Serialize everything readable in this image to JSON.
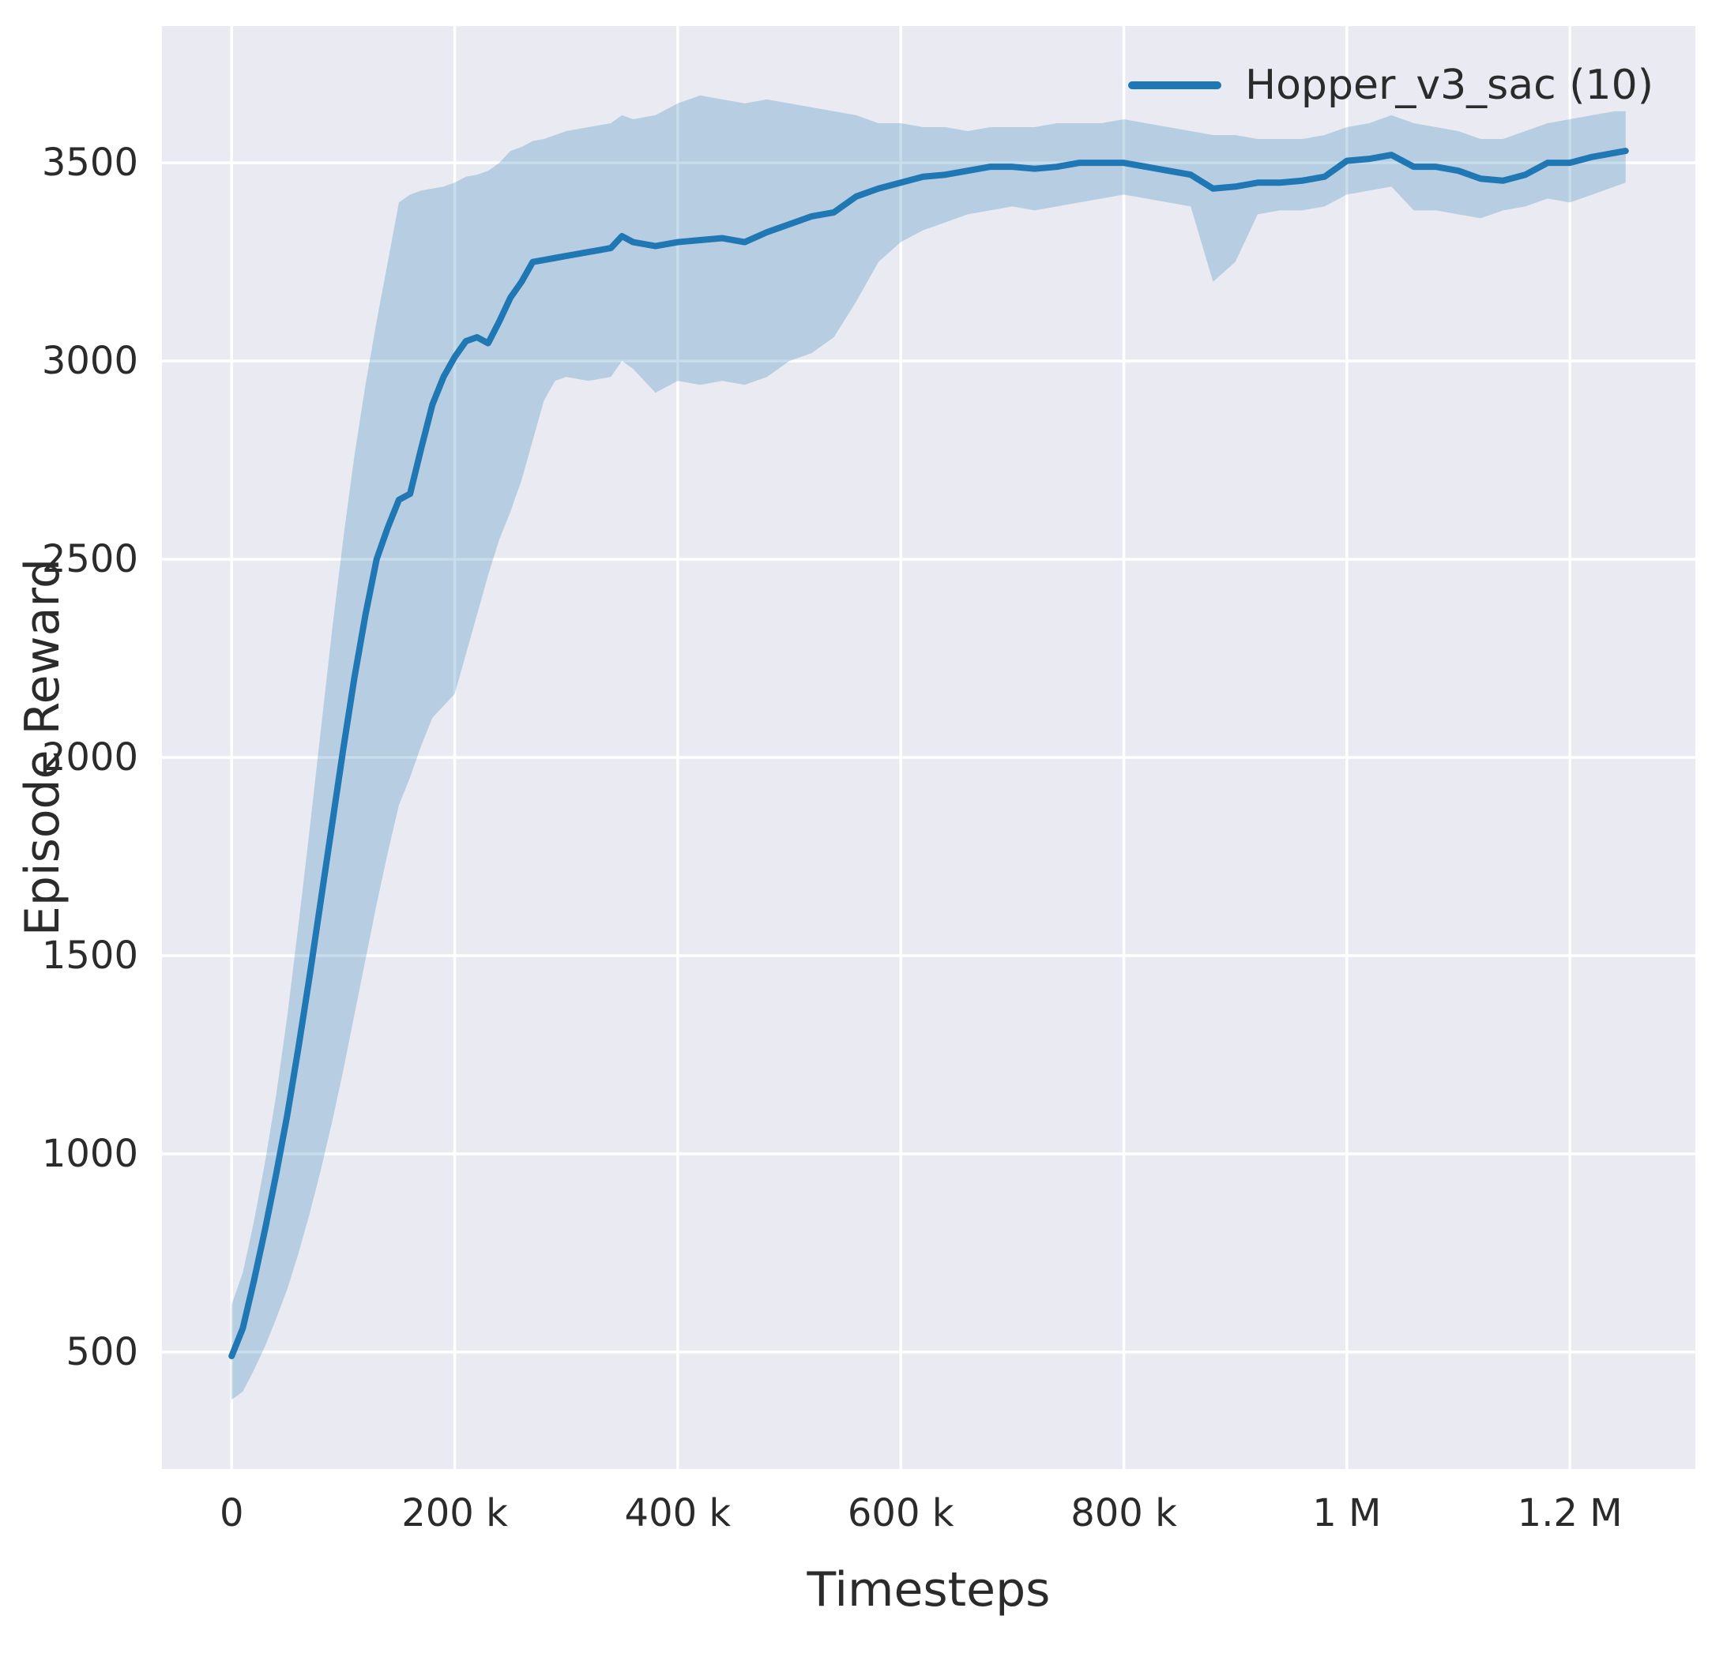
{
  "chart_data": {
    "type": "line",
    "title": "",
    "xlabel": "Timesteps",
    "ylabel": "Episode Reward",
    "legend_label": "Hopper_v3_sac (10)",
    "legend_position": "upper right",
    "grid": true,
    "plot_background": "#eaeaf2",
    "gridline_color": "#ffffff",
    "tick_color": "#2b2b2b",
    "xlim": [
      -62500,
      1312500
    ],
    "ylim": [
      205,
      3845
    ],
    "xticks": {
      "values": [
        0,
        200000,
        400000,
        600000,
        800000,
        1000000,
        1200000
      ],
      "labels": [
        "0",
        "200 k",
        "400 k",
        "600 k",
        "800 k",
        "1 M",
        "1.2 M"
      ]
    },
    "yticks": {
      "values": [
        500,
        1000,
        1500,
        2000,
        2500,
        3000,
        3500
      ],
      "labels": [
        "500",
        "1000",
        "1500",
        "2000",
        "2500",
        "3000",
        "3500"
      ]
    },
    "series": [
      {
        "name": "Hopper_v3_sac (10)",
        "color": "#1f77b4",
        "band_opacity": 0.25,
        "line_width": 8,
        "x": [
          0,
          10000,
          20000,
          30000,
          40000,
          50000,
          60000,
          70000,
          80000,
          90000,
          100000,
          110000,
          120000,
          130000,
          140000,
          150000,
          160000,
          170000,
          180000,
          190000,
          200000,
          210000,
          220000,
          230000,
          240000,
          250000,
          260000,
          270000,
          280000,
          290000,
          300000,
          320000,
          340000,
          350000,
          360000,
          380000,
          400000,
          420000,
          440000,
          460000,
          480000,
          500000,
          520000,
          540000,
          560000,
          580000,
          600000,
          620000,
          640000,
          660000,
          680000,
          700000,
          720000,
          740000,
          760000,
          780000,
          800000,
          820000,
          840000,
          860000,
          880000,
          900000,
          920000,
          940000,
          960000,
          980000,
          1000000,
          1020000,
          1040000,
          1060000,
          1080000,
          1100000,
          1120000,
          1140000,
          1160000,
          1180000,
          1200000,
          1220000,
          1240000,
          1250000
        ],
        "mean": [
          490,
          560,
          680,
          810,
          950,
          1100,
          1270,
          1450,
          1640,
          1830,
          2020,
          2200,
          2360,
          2500,
          2580,
          2650,
          2665,
          2780,
          2890,
          2960,
          3010,
          3050,
          3060,
          3045,
          3100,
          3160,
          3200,
          3250,
          3255,
          3260,
          3265,
          3275,
          3285,
          3315,
          3300,
          3290,
          3300,
          3305,
          3310,
          3300,
          3325,
          3345,
          3365,
          3375,
          3415,
          3435,
          3450,
          3465,
          3470,
          3480,
          3490,
          3490,
          3485,
          3490,
          3500,
          3500,
          3500,
          3490,
          3480,
          3470,
          3435,
          3440,
          3450,
          3450,
          3455,
          3465,
          3505,
          3510,
          3520,
          3490,
          3490,
          3480,
          3460,
          3455,
          3470,
          3500,
          3500,
          3515,
          3525,
          3530
        ],
        "band_low": [
          380,
          400,
          455,
          515,
          585,
          660,
          750,
          850,
          960,
          1080,
          1210,
          1350,
          1490,
          1630,
          1760,
          1880,
          1950,
          2030,
          2100,
          2130,
          2160,
          2260,
          2360,
          2460,
          2550,
          2620,
          2700,
          2800,
          2900,
          2950,
          2960,
          2950,
          2960,
          3000,
          2980,
          2920,
          2950,
          2940,
          2950,
          2940,
          2960,
          3000,
          3020,
          3060,
          3150,
          3250,
          3300,
          3330,
          3350,
          3370,
          3380,
          3390,
          3380,
          3390,
          3400,
          3410,
          3420,
          3410,
          3400,
          3390,
          3200,
          3250,
          3370,
          3380,
          3380,
          3390,
          3420,
          3430,
          3440,
          3380,
          3380,
          3370,
          3360,
          3380,
          3390,
          3410,
          3400,
          3420,
          3440,
          3450
        ],
        "band_high": [
          620,
          700,
          830,
          980,
          1150,
          1350,
          1580,
          1820,
          2070,
          2320,
          2550,
          2760,
          2940,
          3100,
          3250,
          3400,
          3420,
          3430,
          3435,
          3440,
          3450,
          3465,
          3470,
          3480,
          3500,
          3530,
          3540,
          3555,
          3560,
          3570,
          3580,
          3590,
          3600,
          3620,
          3610,
          3620,
          3650,
          3670,
          3660,
          3650,
          3660,
          3650,
          3640,
          3630,
          3620,
          3600,
          3600,
          3590,
          3590,
          3580,
          3590,
          3590,
          3590,
          3600,
          3600,
          3600,
          3610,
          3600,
          3590,
          3580,
          3570,
          3570,
          3560,
          3560,
          3560,
          3570,
          3590,
          3600,
          3620,
          3600,
          3590,
          3580,
          3560,
          3560,
          3580,
          3600,
          3610,
          3620,
          3630,
          3630
        ]
      }
    ]
  }
}
